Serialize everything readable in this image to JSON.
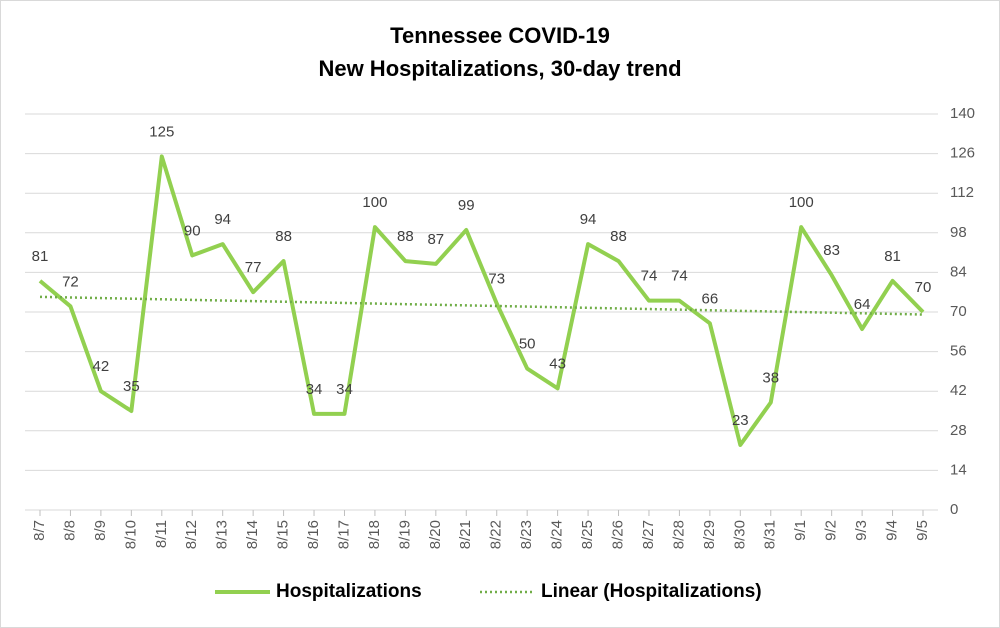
{
  "chart_data": {
    "type": "line",
    "title": "Tennessee COVID-19",
    "subtitle": "New Hospitalizations, 30-day trend",
    "categories": [
      "8/7",
      "8/8",
      "8/9",
      "8/10",
      "8/11",
      "8/12",
      "8/13",
      "8/14",
      "8/15",
      "8/16",
      "8/17",
      "8/18",
      "8/19",
      "8/20",
      "8/21",
      "8/22",
      "8/23",
      "8/24",
      "8/25",
      "8/26",
      "8/27",
      "8/28",
      "8/29",
      "8/30",
      "8/31",
      "9/1",
      "9/2",
      "9/3",
      "9/4",
      "9/5"
    ],
    "series": [
      {
        "name": "Hospitalizations",
        "color": "#92d050",
        "values": [
          81,
          72,
          42,
          35,
          125,
          90,
          94,
          77,
          88,
          34,
          34,
          100,
          88,
          87,
          99,
          73,
          50,
          43,
          94,
          88,
          74,
          74,
          66,
          23,
          38,
          100,
          83,
          64,
          81,
          70
        ]
      }
    ],
    "trendline": {
      "name": "Linear (Hospitalizations)",
      "color": "#70ad47"
    },
    "ylim": [
      0,
      140
    ],
    "yticks": [
      0,
      14,
      28,
      42,
      56,
      70,
      84,
      98,
      112,
      126,
      140
    ],
    "axis_side": "right",
    "grid": true
  }
}
